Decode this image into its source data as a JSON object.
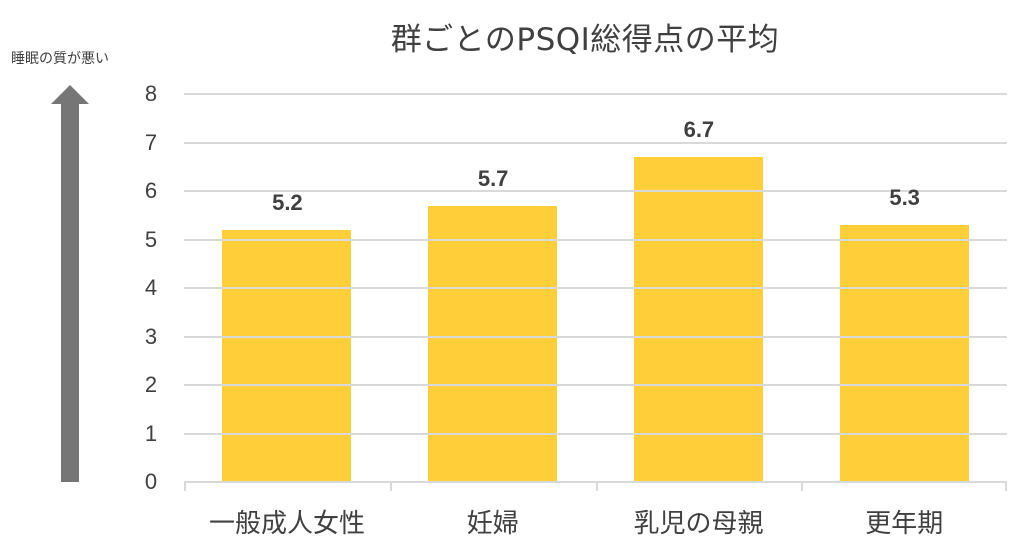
{
  "chart_data": {
    "type": "bar",
    "title": "群ごとのPSQI総得点の平均",
    "xlabel": "",
    "ylabel": "睡眠の質が悪い",
    "categories": [
      "一般成人女性",
      "妊婦",
      "乳児の母親",
      "更年期"
    ],
    "values": [
      5.2,
      5.7,
      6.7,
      5.3
    ],
    "data_labels": [
      "5.2",
      "5.7",
      "6.7",
      "5.3"
    ],
    "ylim": [
      0,
      8
    ],
    "yticks": [
      "0",
      "1",
      "2",
      "3",
      "4",
      "5",
      "6",
      "7",
      "8"
    ],
    "grid": true,
    "legend": "none",
    "bar_color": "#ffc000",
    "annotation": "upward arrow indicating worse sleep quality"
  }
}
